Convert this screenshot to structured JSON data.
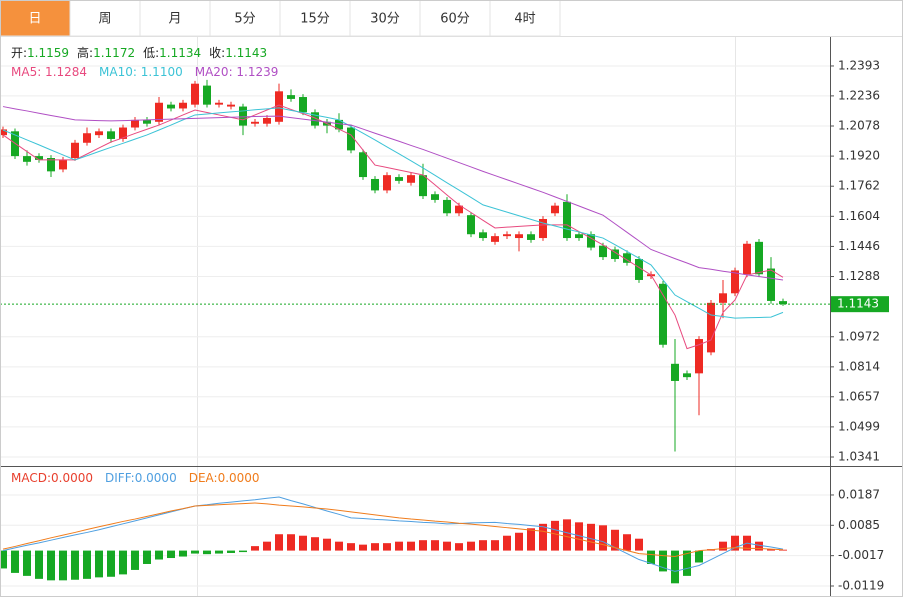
{
  "tabs": [
    "日",
    "周",
    "月",
    "5分",
    "15分",
    "30分",
    "60分",
    "4时"
  ],
  "selected_tab": 0,
  "chart_data": [
    {
      "type": "candlestick",
      "info": [
        {
          "label": "开:",
          "value": "1.1159"
        },
        {
          "label": "高:",
          "value": "1.1172"
        },
        {
          "label": "低:",
          "value": "1.1134"
        },
        {
          "label": "收:",
          "value": "1.1143"
        }
      ],
      "up_color": "#ee2a23",
      "down_color": "#16a823",
      "open": [
        1.203,
        1.205,
        1.192,
        1.192,
        1.191,
        1.185,
        1.191,
        1.199,
        1.203,
        1.205,
        1.201,
        1.207,
        1.211,
        1.21,
        1.219,
        1.217,
        1.219,
        1.229,
        1.219,
        1.218,
        1.218,
        1.209,
        1.209,
        1.21,
        1.224,
        1.223,
        1.215,
        1.21,
        1.211,
        1.207,
        1.194,
        1.18,
        1.174,
        1.181,
        1.178,
        1.182,
        1.172,
        1.169,
        1.162,
        1.161,
        1.152,
        1.147,
        1.15,
        1.149,
        1.151,
        1.149,
        1.162,
        1.168,
        1.151,
        1.151,
        1.145,
        1.143,
        1.141,
        1.138,
        1.129,
        1.125,
        1.083,
        1.078,
        1.078,
        1.089,
        1.115,
        1.12,
        1.13,
        1.147,
        1.133,
        1.1159
      ],
      "high": [
        1.2075,
        1.2065,
        1.195,
        1.1935,
        1.1925,
        1.1915,
        1.2005,
        1.207,
        1.2065,
        1.2065,
        1.2085,
        1.2125,
        1.2125,
        1.223,
        1.2205,
        1.2215,
        1.2315,
        1.232,
        1.2215,
        1.2205,
        1.2195,
        1.2115,
        1.2135,
        1.23,
        1.227,
        1.2245,
        1.2165,
        1.2115,
        1.2145,
        1.2085,
        1.1955,
        1.1815,
        1.1835,
        1.1825,
        1.1835,
        1.188,
        1.1735,
        1.1705,
        1.1675,
        1.1625,
        1.1535,
        1.1515,
        1.1525,
        1.1525,
        1.1525,
        1.1605,
        1.1675,
        1.172,
        1.1525,
        1.1525,
        1.1465,
        1.1445,
        1.1425,
        1.1395,
        1.1315,
        1.1265,
        1.096,
        1.0795,
        1.0975,
        1.1165,
        1.127,
        1.1335,
        1.1475,
        1.1485,
        1.139,
        1.1172
      ],
      "low": [
        1.2015,
        1.1905,
        1.187,
        1.1885,
        1.181,
        1.1835,
        1.1895,
        1.1975,
        1.2015,
        1.199,
        1.1995,
        1.2055,
        1.2075,
        1.2085,
        1.2155,
        1.2155,
        1.2175,
        1.2175,
        1.2175,
        1.2165,
        1.203,
        1.2075,
        1.2075,
        1.2085,
        1.2205,
        1.2135,
        1.2065,
        1.204,
        1.2045,
        1.1935,
        1.1795,
        1.1725,
        1.1725,
        1.1775,
        1.1765,
        1.1695,
        1.1675,
        1.1605,
        1.1605,
        1.1495,
        1.1475,
        1.1455,
        1.1485,
        1.142,
        1.1465,
        1.1475,
        1.1605,
        1.1475,
        1.1475,
        1.1425,
        1.1375,
        1.1365,
        1.1345,
        1.1255,
        1.1275,
        1.0915,
        1.037,
        1.0745,
        1.056,
        1.0875,
        1.107,
        1.1185,
        1.1285,
        1.1285,
        1.1145,
        1.1134
      ],
      "close": [
        1.206,
        1.192,
        1.189,
        1.19,
        1.184,
        1.19,
        1.199,
        1.204,
        1.205,
        1.201,
        1.207,
        1.211,
        1.209,
        1.22,
        1.217,
        1.22,
        1.23,
        1.219,
        1.22,
        1.219,
        1.208,
        1.21,
        1.212,
        1.226,
        1.222,
        1.215,
        1.208,
        1.208,
        1.206,
        1.195,
        1.181,
        1.174,
        1.182,
        1.179,
        1.182,
        1.171,
        1.169,
        1.162,
        1.166,
        1.151,
        1.149,
        1.15,
        1.151,
        1.151,
        1.148,
        1.159,
        1.166,
        1.149,
        1.149,
        1.144,
        1.139,
        1.138,
        1.136,
        1.127,
        1.13,
        1.093,
        1.074,
        1.076,
        1.096,
        1.115,
        1.12,
        1.132,
        1.146,
        1.13,
        1.116,
        1.1143
      ],
      "series": [
        {
          "legend": "MA5: 1.1284",
          "color": "#e84a7f",
          "values": [
            1.2031,
            1.1987,
            1.1944,
            1.19,
            1.19,
            1.19,
            1.19,
            1.1931,
            1.1963,
            1.1994,
            1.2016,
            1.2039,
            1.2061,
            1.2083,
            1.2109,
            1.2136,
            1.2162,
            1.2149,
            1.2136,
            1.2123,
            1.211,
            1.2136,
            1.2162,
            1.2188,
            1.2165,
            1.2143,
            1.212,
            1.209,
            1.2061,
            1.2031,
            1.1952,
            1.1873,
            1.186,
            1.1847,
            1.1834,
            1.1821,
            1.1769,
            1.1716,
            1.1664,
            1.1624,
            1.1583,
            1.1543,
            1.1547,
            1.1551,
            1.1555,
            1.1559,
            1.1559,
            1.1559,
            1.1524,
            1.1489,
            1.1454,
            1.1415,
            1.1375,
            1.1336,
            1.1296,
            1.1191,
            1.1086,
            1.091,
            1.093,
            1.0955,
            1.11,
            1.1165,
            1.1296,
            1.1309,
            1.1322,
            1.1284
          ]
        },
        {
          "legend": "MA10: 1.1100",
          "color": "#3cc3d6",
          "values": [
            1.2057,
            1.2031,
            1.2005,
            1.1979,
            1.1952,
            1.1926,
            1.19,
            1.1922,
            1.1944,
            1.1966,
            1.1987,
            1.2009,
            1.2031,
            1.2057,
            1.2083,
            1.211,
            1.2136,
            1.2141,
            1.2147,
            1.2152,
            1.2157,
            1.2163,
            1.2168,
            1.2173,
            1.216,
            1.2148,
            1.2135,
            1.2123,
            1.211,
            1.2075,
            1.204,
            1.2005,
            1.1968,
            1.1932,
            1.1895,
            1.1858,
            1.1819,
            1.178,
            1.1742,
            1.1703,
            1.1664,
            1.1645,
            1.1626,
            1.1607,
            1.1588,
            1.1569,
            1.1553,
            1.1537,
            1.1522,
            1.1506,
            1.149,
            1.1455,
            1.142,
            1.1384,
            1.1349,
            1.127,
            1.1191,
            1.1156,
            1.1121,
            1.1086,
            1.1078,
            1.107,
            1.1072,
            1.1073,
            1.1075,
            1.11
          ]
        },
        {
          "legend": "MA20: 1.1239",
          "color": "#b04fc4",
          "values": [
            1.218,
            1.2168,
            1.2157,
            1.2145,
            1.2133,
            1.2122,
            1.211,
            1.2108,
            1.2106,
            1.2105,
            1.2106,
            1.2108,
            1.211,
            1.2112,
            1.2114,
            1.2116,
            1.2118,
            1.212,
            1.2122,
            1.2124,
            1.2126,
            1.2128,
            1.2129,
            1.213,
            1.2122,
            1.2114,
            1.2106,
            1.2098,
            1.209,
            1.2083,
            1.2062,
            1.204,
            1.2019,
            1.1998,
            1.1976,
            1.1955,
            1.1932,
            1.1909,
            1.1886,
            1.1863,
            1.184,
            1.1818,
            1.1796,
            1.1774,
            1.1752,
            1.173,
            1.1706,
            1.1682,
            1.1658,
            1.1634,
            1.161,
            1.1565,
            1.152,
            1.1475,
            1.143,
            1.1406,
            1.1382,
            1.1359,
            1.1335,
            1.1326,
            1.1316,
            1.1307,
            1.1297,
            1.1288,
            1.1279,
            1.127
          ]
        }
      ],
      "ylim": [
        1.0299,
        1.2545
      ],
      "yticks": [
        1.2393,
        1.2236,
        1.2078,
        {
          "value": 1.192,
          "label": "1.1920"
        },
        1.1762,
        1.1604,
        1.1446,
        1.1288,
        1.0972,
        1.0814,
        1.0657,
        1.0499,
        1.0341
      ],
      "last_price": 1.1143,
      "grid": true
    },
    {
      "type": "macd",
      "legend": "MACD:0.0000",
      "legend_color": "#e8402e",
      "values": [
        -0.006,
        -0.0075,
        -0.0085,
        -0.0095,
        -0.01,
        -0.01,
        -0.0098,
        -0.0095,
        -0.009,
        -0.0088,
        -0.008,
        -0.0065,
        -0.0045,
        -0.003,
        -0.0025,
        -0.002,
        -0.001,
        -0.0012,
        -0.001,
        -0.0008,
        -0.0005,
        0.0015,
        0.003,
        0.0055,
        0.0055,
        0.005,
        0.0045,
        0.004,
        0.003,
        0.0025,
        0.002,
        0.0025,
        0.0025,
        0.003,
        0.003,
        0.0035,
        0.0035,
        0.003,
        0.0025,
        0.003,
        0.0035,
        0.0035,
        0.005,
        0.006,
        0.0075,
        0.009,
        0.01,
        0.0105,
        0.0095,
        0.009,
        0.0085,
        0.007,
        0.0055,
        0.004,
        -0.0045,
        -0.007,
        -0.011,
        -0.0085,
        -0.004,
        0.0005,
        0.003,
        0.005,
        0.005,
        0.003,
        0.0005,
        0.0003
      ],
      "up_color": "#ee2a23",
      "down_color": "#16a823",
      "series": [
        {
          "legend": "DIFF:0.0000",
          "color": "#4f9fe0",
          "values": [
            0,
            0.0009,
            0.0018,
            0.0026,
            0.0035,
            0.0044,
            0.0053,
            0.0061,
            0.007,
            0.008,
            0.009,
            0.01,
            0.011,
            0.012,
            0.013,
            0.014,
            0.015,
            0.0154,
            0.0159,
            0.0163,
            0.0167,
            0.0171,
            0.0176,
            0.018,
            0.0168,
            0.0157,
            0.0145,
            0.0133,
            0.0122,
            0.011,
            0.0108,
            0.0105,
            0.0103,
            0.01,
            0.0098,
            0.0095,
            0.0093,
            0.009,
            0.0091,
            0.0093,
            0.0094,
            0.0095,
            0.0091,
            0.0088,
            0.0084,
            0.008,
            0.007,
            0.006,
            0.005,
            0.004,
            0.003,
            0.001,
            -0.001,
            -0.003,
            -0.0043,
            -0.0057,
            -0.007,
            -0.006,
            -0.005,
            -0.003,
            -0.001,
            0.001,
            0.0025,
            0.0018,
            0.0012,
            0.0005
          ]
        },
        {
          "legend": "DEA:0.0000",
          "color": "#f07c1c",
          "values": [
            0.0005,
            0.0014,
            0.0024,
            0.0033,
            0.0043,
            0.0052,
            0.0061,
            0.0071,
            0.008,
            0.0089,
            0.0098,
            0.0106,
            0.0115,
            0.0124,
            0.0133,
            0.0141,
            0.015,
            0.0152,
            0.0154,
            0.0156,
            0.0158,
            0.016,
            0.0157,
            0.0153,
            0.015,
            0.0147,
            0.0143,
            0.014,
            0.0135,
            0.013,
            0.0125,
            0.012,
            0.0115,
            0.011,
            0.0106,
            0.0103,
            0.0099,
            0.0096,
            0.0092,
            0.0089,
            0.0085,
            0.0081,
            0.0077,
            0.0073,
            0.0069,
            0.0065,
            0.0056,
            0.0047,
            0.0038,
            0.0029,
            0.002,
            0.001,
            0,
            -0.001,
            -0.0013,
            -0.0017,
            -0.002,
            -0.001,
            0,
            0.0003,
            0.0007,
            0.001,
            0.0008,
            0.0007,
            0.0005,
            0.0003
          ]
        }
      ],
      "ylim": [
        -0.0156,
        0.0281
      ],
      "yticks": [
        0.0187,
        0.0085,
        -0.0017,
        -0.0119
      ],
      "grid": true
    }
  ]
}
